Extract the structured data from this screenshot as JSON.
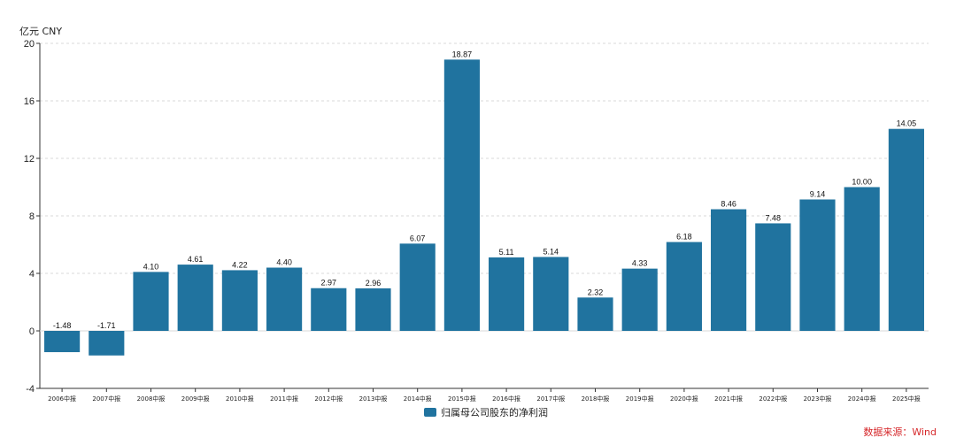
{
  "chart_data": {
    "type": "bar",
    "y_unit_label": "亿元  CNY",
    "categories": [
      "2006中报",
      "2007中报",
      "2008中报",
      "2009中报",
      "2010中报",
      "2011中报",
      "2012中报",
      "2013中报",
      "2014中报",
      "2015中报",
      "2016中报",
      "2017中报",
      "2018中报",
      "2019中报",
      "2020中报",
      "2021中报",
      "2022中报",
      "2023中报",
      "2024中报",
      "2025中报"
    ],
    "series": [
      {
        "name": "归属母公司股东的净利润",
        "values": [
          -1.48,
          -1.71,
          4.1,
          4.61,
          4.22,
          4.4,
          2.97,
          2.96,
          6.07,
          18.87,
          5.11,
          5.14,
          2.32,
          4.33,
          6.18,
          8.46,
          7.48,
          9.14,
          10.0,
          14.05
        ],
        "value_labels": [
          "-1.48",
          "-1.71",
          "4.10",
          "4.61",
          "4.22",
          "4.40",
          "2.97",
          "2.96",
          "6.07",
          "18.87",
          "5.11",
          "5.14",
          "2.32",
          "4.33",
          "6.18",
          "8.46",
          "7.48",
          "9.14",
          "10.00",
          "14.05"
        ]
      }
    ],
    "ylim": [
      -4,
      20
    ],
    "yticks": [
      -4,
      0,
      4,
      8,
      12,
      16,
      20
    ],
    "ytick_labels": [
      "-4",
      "0",
      "4",
      "8",
      "12",
      "16",
      "20"
    ],
    "grid": true,
    "legend_position": "bottom-center",
    "bar_color": "#20739f",
    "source_note": "数据来源：Wind",
    "source_color": "#d6282b"
  }
}
